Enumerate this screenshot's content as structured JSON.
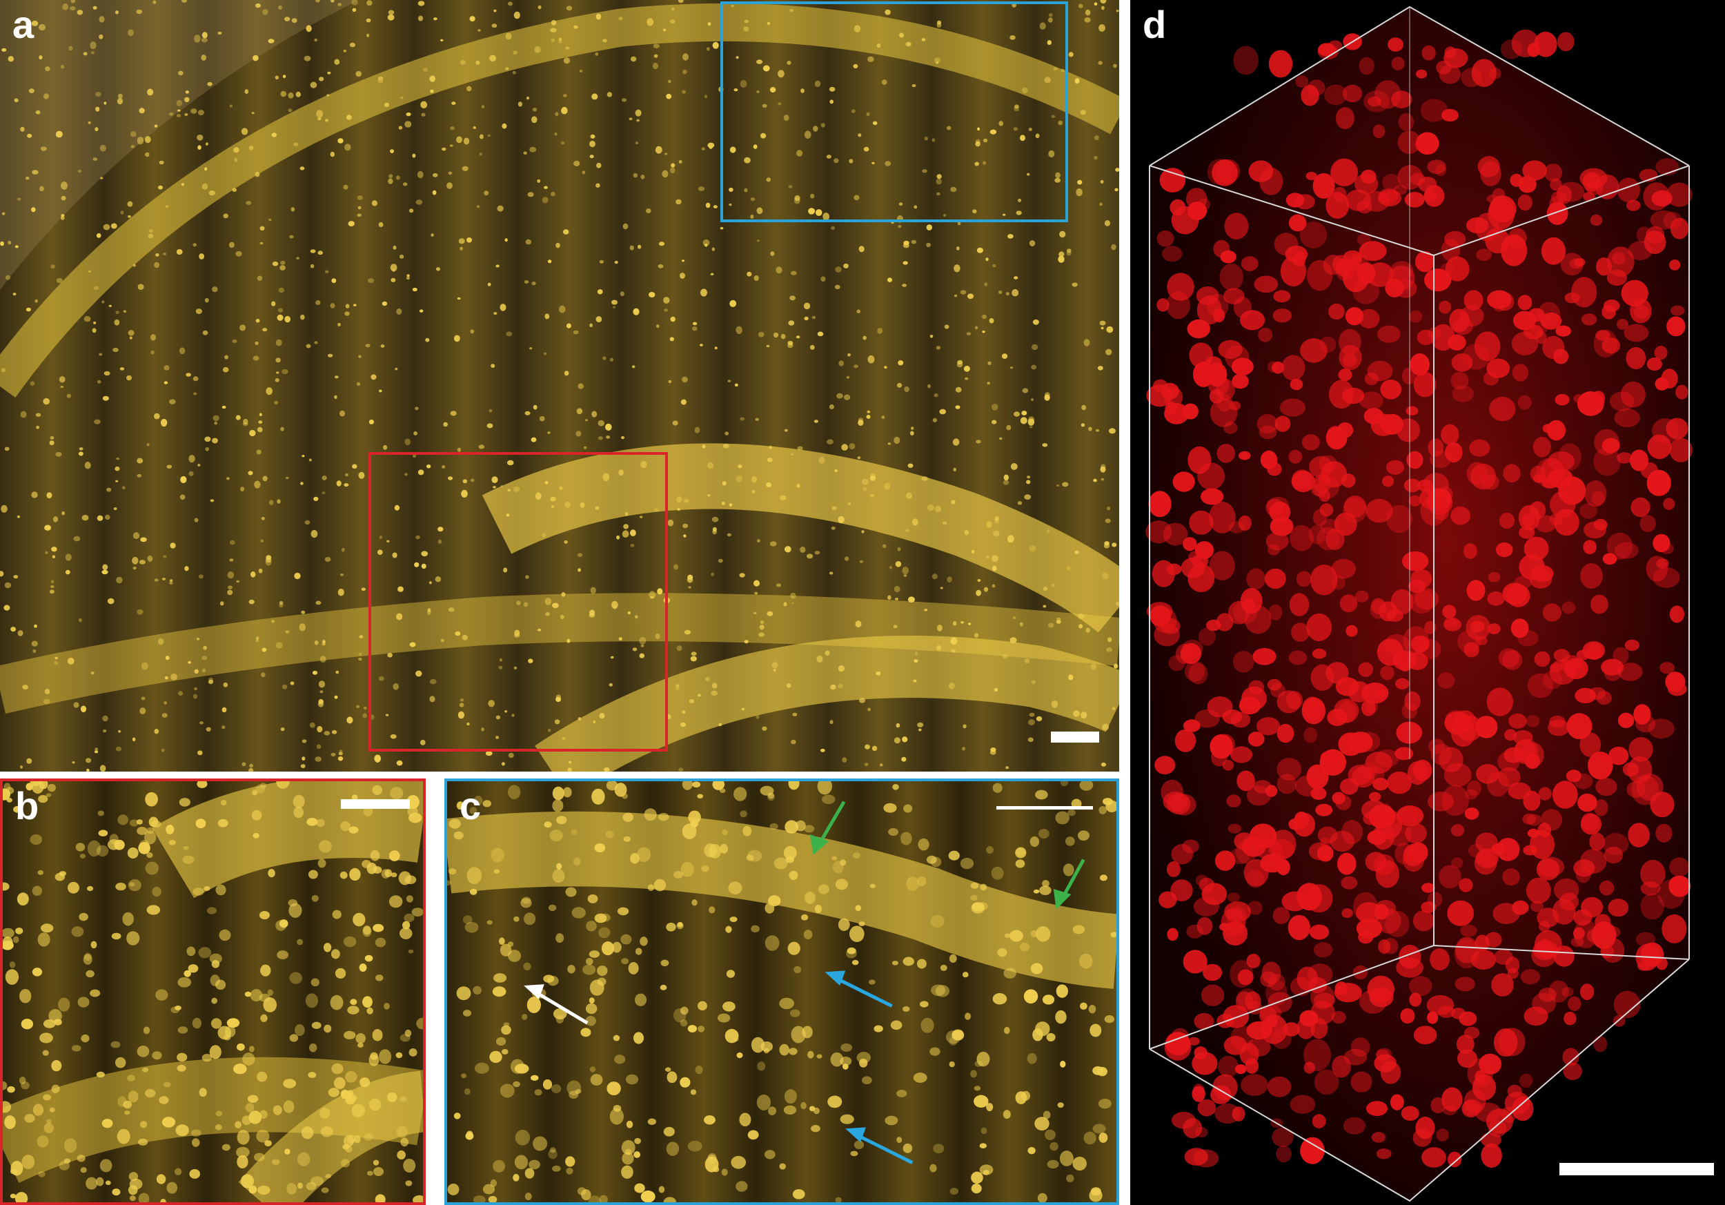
{
  "figure": {
    "panels": [
      {
        "id": "a",
        "label": "a",
        "description_color": "#d6b330"
      },
      {
        "id": "b",
        "label": "b"
      },
      {
        "id": "c",
        "label": "c"
      },
      {
        "id": "d",
        "label": "d"
      }
    ]
  },
  "colors": {
    "tissue_dark": "#1d1707",
    "tissue_mid": "#5a4712",
    "nuclei_yellow": "#e6c43e",
    "box_red": "#d8252a",
    "box_blue": "#2ba3d9",
    "arrow_green": "#3bb24a",
    "arrow_blue": "#2aa7e0",
    "arrow_white": "#ffffff",
    "volume_red": "#e5161a",
    "background_black": "#000000"
  },
  "annotations": {
    "panel_c_arrows": [
      "green",
      "green",
      "blue",
      "blue",
      "white"
    ]
  }
}
